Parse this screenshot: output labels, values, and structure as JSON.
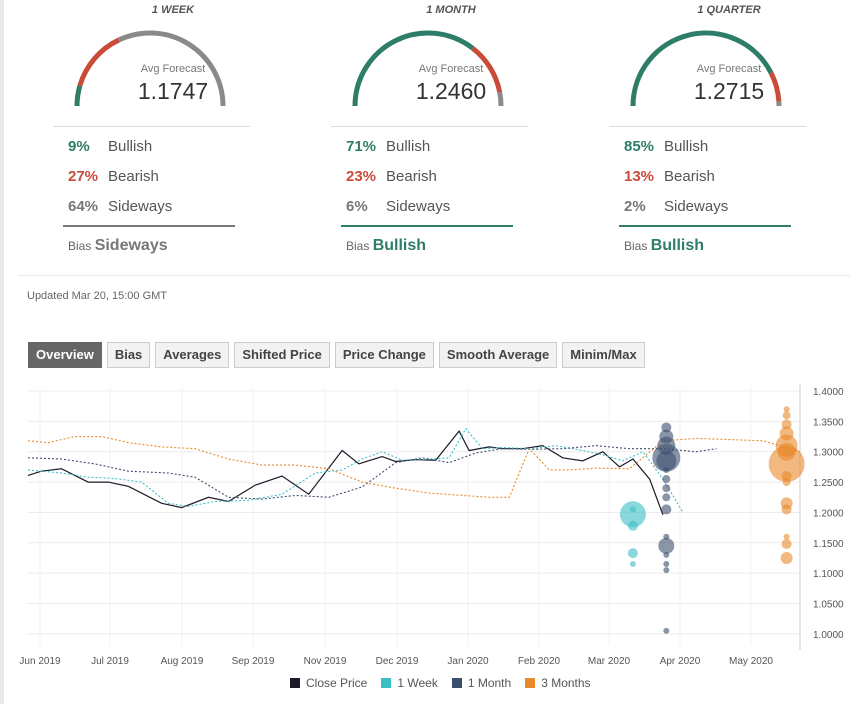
{
  "panels": [
    {
      "title": "1 WEEK",
      "avg_label": "Avg Forecast",
      "avg_value": "1.1747",
      "bullish_pct": "9%",
      "bullish_label": "Bullish",
      "bearish_pct": "27%",
      "bearish_label": "Bearish",
      "sideways_pct": "64%",
      "sideways_label": "Sideways",
      "bias_label": "Bias",
      "bias_value": "Sideways",
      "bias_color": "#777777",
      "gauge": {
        "bullish": 0.09,
        "bearish": 0.27,
        "sideways": 0.64
      }
    },
    {
      "title": "1 MONTH",
      "avg_label": "Avg Forecast",
      "avg_value": "1.2460",
      "bullish_pct": "71%",
      "bullish_label": "Bullish",
      "bearish_pct": "23%",
      "bearish_label": "Bearish",
      "sideways_pct": "6%",
      "sideways_label": "Sideways",
      "bias_label": "Bias",
      "bias_value": "Bullish",
      "bias_color": "#2e7d68",
      "gauge": {
        "bullish": 0.71,
        "bearish": 0.23,
        "sideways": 0.06
      }
    },
    {
      "title": "1 QUARTER",
      "avg_label": "Avg Forecast",
      "avg_value": "1.2715",
      "bullish_pct": "85%",
      "bullish_label": "Bullish",
      "bearish_pct": "13%",
      "bearish_label": "Bearish",
      "sideways_pct": "2%",
      "sideways_label": "Sideways",
      "bias_label": "Bias",
      "bias_value": "Bullish",
      "bias_color": "#2e7d68",
      "gauge": {
        "bullish": 0.85,
        "bearish": 0.13,
        "sideways": 0.02
      }
    }
  ],
  "colors": {
    "bullish": "#2e7d68",
    "bearish": "#c94c3a",
    "sideways": "#8a8a8a"
  },
  "updated": "Updated Mar 20, 15:00 GMT",
  "tabs": [
    "Overview",
    "Bias",
    "Averages",
    "Shifted Price",
    "Price Change",
    "Smooth Average",
    "Minim/Max"
  ],
  "active_tab": 0,
  "legend": [
    {
      "label": "Close Price",
      "color": "#1b1b2a"
    },
    {
      "label": "1 Week",
      "color": "#3bbfc4"
    },
    {
      "label": "1 Month",
      "color": "#3c4e6e"
    },
    {
      "label": "3 Months",
      "color": "#e8892b"
    }
  ],
  "chart_data": {
    "type": "line",
    "x_ticks": [
      "Jun 2019",
      "Jul 2019",
      "Aug 2019",
      "Sep 2019",
      "Nov 2019",
      "Dec 2019",
      "Jan 2020",
      "Feb 2020",
      "Mar 2020",
      "Apr 2020",
      "May 2020"
    ],
    "y_ticks": [
      "1.0000",
      "1.0500",
      "1.1000",
      "1.1500",
      "1.2000",
      "1.2500",
      "1.3000",
      "1.3500",
      "1.4000"
    ],
    "ylim": [
      0.98,
      1.405
    ],
    "x_range_months": [
      5.5,
      17.05
    ],
    "series": [
      {
        "name": "Close Price",
        "color": "#1b1b2a",
        "style": "solid",
        "x": [
          5.5,
          5.7,
          6.0,
          6.4,
          6.7,
          7.0,
          7.5,
          7.8,
          8.2,
          8.5,
          8.9,
          9.3,
          9.7,
          10.2,
          10.45,
          10.8,
          11.0,
          11.3,
          11.6,
          11.95,
          12.1,
          12.4,
          12.6,
          12.9,
          13.2,
          13.5,
          13.8,
          14.1,
          14.35,
          14.55,
          14.8,
          15.0
        ],
        "y": [
          1.261,
          1.268,
          1.272,
          1.25,
          1.25,
          1.243,
          1.215,
          1.208,
          1.225,
          1.218,
          1.245,
          1.26,
          1.23,
          1.302,
          1.28,
          1.292,
          1.284,
          1.287,
          1.286,
          1.334,
          1.302,
          1.308,
          1.305,
          1.305,
          1.31,
          1.29,
          1.285,
          1.3,
          1.275,
          1.288,
          1.255,
          1.196
        ]
      },
      {
        "name": "1 Week",
        "color": "#3bbfc4",
        "style": "dotted",
        "x": [
          5.5,
          6.0,
          6.4,
          6.8,
          7.2,
          7.6,
          7.9,
          8.3,
          8.8,
          9.3,
          9.8,
          10.2,
          10.5,
          10.8,
          11.1,
          11.4,
          11.8,
          12.05,
          12.3,
          12.6,
          13.0,
          13.4,
          13.8,
          14.1,
          14.4,
          14.7,
          15.0,
          15.3
        ],
        "y": [
          1.27,
          1.265,
          1.258,
          1.256,
          1.25,
          1.215,
          1.21,
          1.218,
          1.22,
          1.23,
          1.265,
          1.27,
          1.288,
          1.3,
          1.286,
          1.287,
          1.29,
          1.338,
          1.305,
          1.307,
          1.305,
          1.31,
          1.302,
          1.295,
          1.285,
          1.3,
          1.255,
          1.2
        ]
      },
      {
        "name": "1 Month",
        "color": "#3c4e6e",
        "style": "dotted",
        "x": [
          5.5,
          6.0,
          6.5,
          7.0,
          7.6,
          8.0,
          8.5,
          9.0,
          9.5,
          10.0,
          10.5,
          11.0,
          11.4,
          11.8,
          12.2,
          12.6,
          13.0,
          13.5,
          14.0,
          14.5,
          15.0,
          15.5,
          15.8
        ],
        "y": [
          1.29,
          1.288,
          1.28,
          1.268,
          1.265,
          1.258,
          1.225,
          1.222,
          1.228,
          1.225,
          1.242,
          1.282,
          1.29,
          1.282,
          1.298,
          1.305,
          1.304,
          1.305,
          1.31,
          1.305,
          1.305,
          1.3,
          1.305
        ]
      },
      {
        "name": "3 Months",
        "color": "#e8892b",
        "style": "dotted",
        "x": [
          5.5,
          5.8,
          6.2,
          6.6,
          7.0,
          7.5,
          8.0,
          8.5,
          9.0,
          9.5,
          10.0,
          10.5,
          11.0,
          11.5,
          12.0,
          12.4,
          12.7,
          13.0,
          13.3,
          13.6,
          14.0,
          14.5,
          15.0,
          15.5,
          16.0,
          16.5,
          16.9,
          17.05
        ],
        "y": [
          1.318,
          1.315,
          1.325,
          1.325,
          1.315,
          1.308,
          1.305,
          1.288,
          1.278,
          1.278,
          1.272,
          1.25,
          1.24,
          1.232,
          1.228,
          1.225,
          1.225,
          1.305,
          1.27,
          1.27,
          1.273,
          1.272,
          1.318,
          1.322,
          1.32,
          1.318,
          1.305,
          1.3
        ]
      }
    ],
    "bubbles": [
      {
        "series": "1 Week",
        "x": 14.55,
        "points": [
          {
            "y": 1.197,
            "r": 13
          },
          {
            "y": 1.205,
            "r": 3
          },
          {
            "y": 1.178,
            "r": 5
          },
          {
            "y": 1.133,
            "r": 5
          },
          {
            "y": 1.115,
            "r": 3
          }
        ]
      },
      {
        "series": "1 Month",
        "x": 15.05,
        "points": [
          {
            "y": 1.34,
            "r": 5
          },
          {
            "y": 1.325,
            "r": 7
          },
          {
            "y": 1.31,
            "r": 9
          },
          {
            "y": 1.29,
            "r": 14
          },
          {
            "y": 1.285,
            "r": 10
          },
          {
            "y": 1.27,
            "r": 3
          },
          {
            "y": 1.255,
            "r": 4
          },
          {
            "y": 1.24,
            "r": 4
          },
          {
            "y": 1.225,
            "r": 4
          },
          {
            "y": 1.205,
            "r": 5
          },
          {
            "y": 1.16,
            "r": 3
          },
          {
            "y": 1.145,
            "r": 8
          },
          {
            "y": 1.13,
            "r": 3
          },
          {
            "y": 1.115,
            "r": 3
          },
          {
            "y": 1.105,
            "r": 3
          },
          {
            "y": 1.005,
            "r": 3
          }
        ]
      },
      {
        "series": "3 Months",
        "x": 16.85,
        "points": [
          {
            "y": 1.37,
            "r": 3
          },
          {
            "y": 1.36,
            "r": 4
          },
          {
            "y": 1.345,
            "r": 5
          },
          {
            "y": 1.33,
            "r": 7
          },
          {
            "y": 1.31,
            "r": 11
          },
          {
            "y": 1.3,
            "r": 9
          },
          {
            "y": 1.28,
            "r": 18
          },
          {
            "y": 1.26,
            "r": 5
          },
          {
            "y": 1.25,
            "r": 4
          },
          {
            "y": 1.215,
            "r": 6
          },
          {
            "y": 1.205,
            "r": 5
          },
          {
            "y": 1.16,
            "r": 3
          },
          {
            "y": 1.148,
            "r": 5
          },
          {
            "y": 1.125,
            "r": 6
          }
        ]
      }
    ]
  }
}
